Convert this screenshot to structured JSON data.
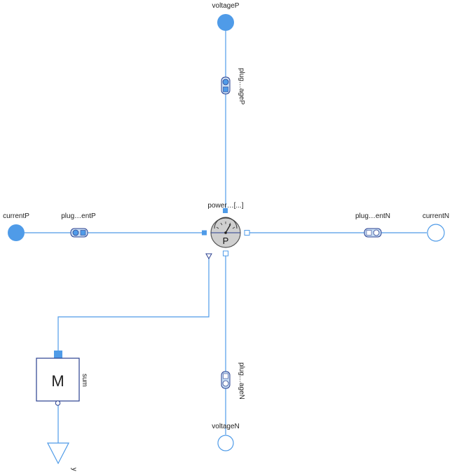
{
  "ports": {
    "voltageP": "voltageP",
    "voltageN": "voltageN",
    "currentP": "currentP",
    "currentN": "currentN",
    "y": "y"
  },
  "components": {
    "plug_voltageP": "plug…ageP",
    "plug_voltageN": "plug…ageN",
    "plug_currentP": "plug…entP",
    "plug_currentN": "plug…entN",
    "power_sensor": "power…[...]",
    "power_symbol": "P",
    "sum": "sum",
    "sum_symbol": "M"
  },
  "colors": {
    "wire": "#4f9be8",
    "port_fill": "#4f9be8",
    "sum_border": "#2a3f8f",
    "sensor_fill": "#cfcfcf"
  }
}
